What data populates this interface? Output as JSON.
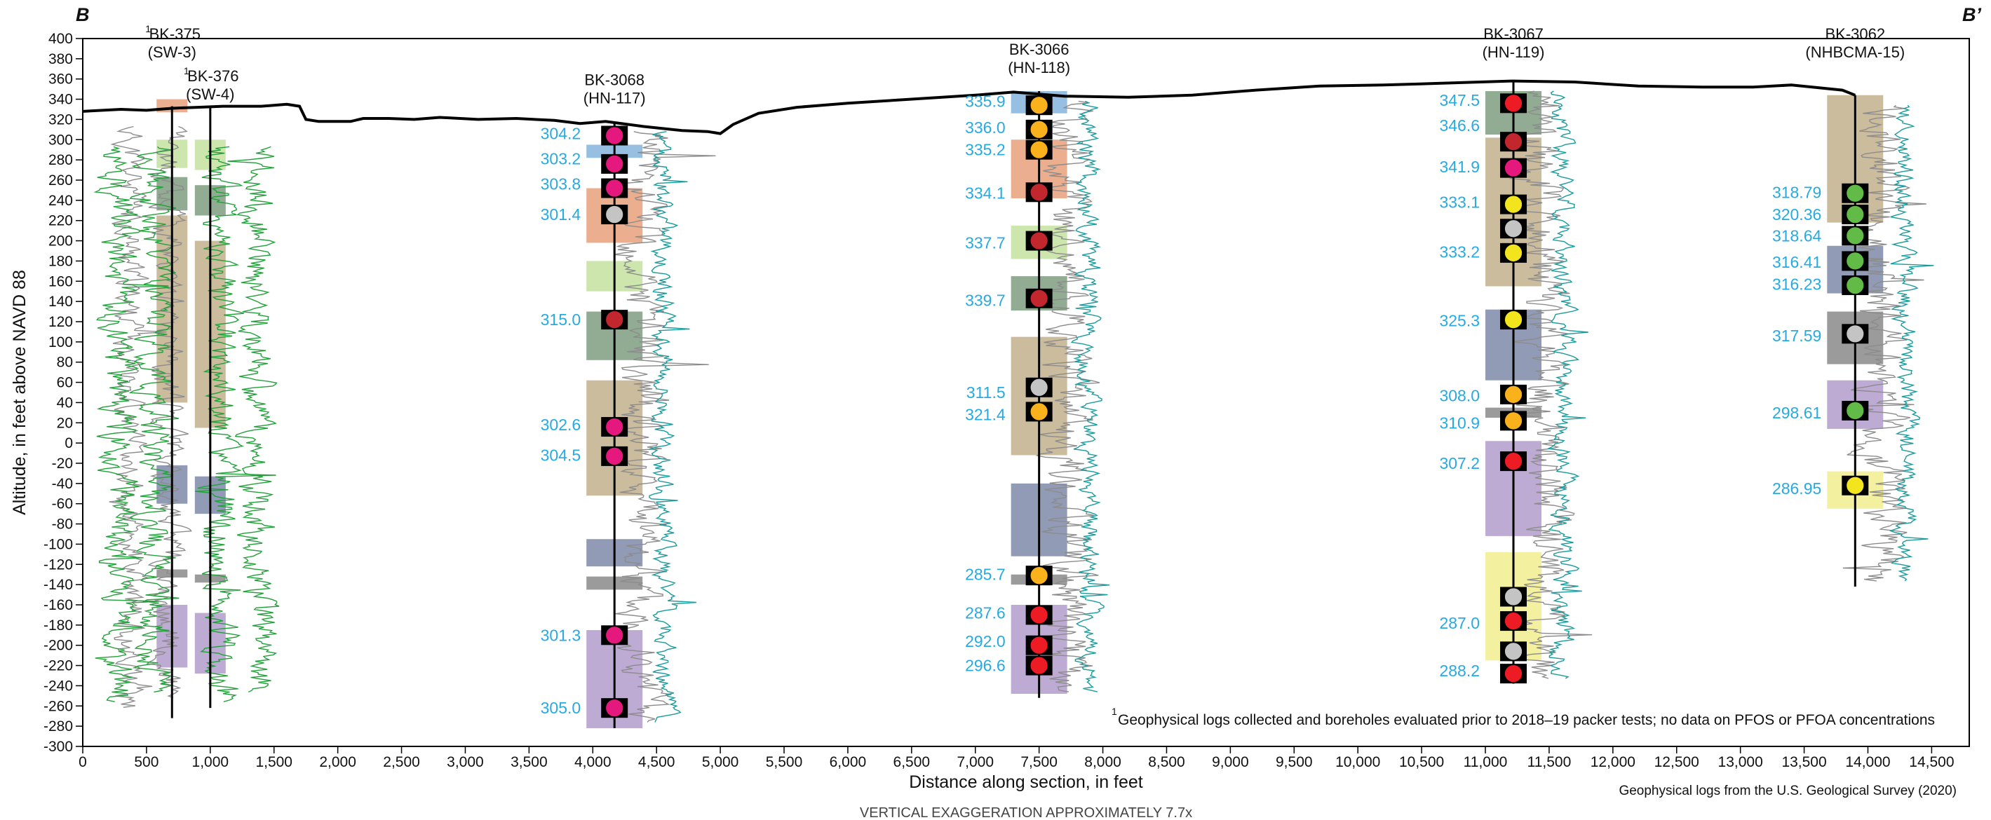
{
  "panel": {
    "left_letter": "B",
    "right_letter": "B’"
  },
  "axes": {
    "ylabel": "Altitude, in feet above NAVD 88",
    "xlabel": "Distance along section, in feet",
    "yticks": [
      "400",
      "380",
      "360",
      "340",
      "320",
      "300",
      "280",
      "260",
      "240",
      "220",
      "200",
      "180",
      "160",
      "140",
      "120",
      "100",
      "80",
      "60",
      "40",
      "20",
      "0",
      "-20",
      "-40",
      "-60",
      "-80",
      "-100",
      "-120",
      "-140",
      "-160",
      "-180",
      "-200",
      "-220",
      "-240",
      "-260",
      "-280",
      "-300"
    ],
    "xticks": [
      "0",
      "500",
      "1,000",
      "1,500",
      "2,000",
      "2,500",
      "3,000",
      "3,500",
      "4,000",
      "4,500",
      "5,000",
      "5,500",
      "6,000",
      "6,500",
      "7,000",
      "7,500",
      "8,000",
      "8,500",
      "9,000",
      "9,500",
      "10,000",
      "10,500",
      "11,000",
      "11,500",
      "12,000",
      "12,500",
      "13,000",
      "13,500",
      "14,000",
      "14,500"
    ]
  },
  "notes": {
    "footnote_sup": "1",
    "footnote": "Geophysical logs collected and boreholes evaluated prior to 2018–19 packer tests; no data on PFOS or PFOA concentrations",
    "source": "Geophysical logs from the U.S. Geological Survey (2020)",
    "exaggeration": "VERTICAL EXAGGERATION APPROXIMATELY 7.7x"
  },
  "colors": {
    "land_surface": "#000000",
    "well": "#000000",
    "value_label": "#27aae1",
    "gamma_log": "#8c8c8c",
    "green_log": "#22a03a",
    "teal_log": "#1a9a9a",
    "orange_zone": "#e8a07a",
    "lightgreen_zone": "#c4e2a0",
    "darkgreen_zone": "#7f9e80",
    "tan_zone": "#c2b08c",
    "blue_zone": "#7e8aa8",
    "lightblue_zone": "#85b4dc",
    "gray_zone": "#8a8a8a",
    "purple_zone": "#b39ccc",
    "yellow_zone": "#f1ef8e",
    "marker_magenta": "#e5187d",
    "marker_darkred": "#c1272d",
    "marker_red": "#ed1c24",
    "marker_orange": "#f9b21c",
    "marker_yellow": "#f2e51e",
    "marker_gray": "#c4c4c4",
    "marker_green": "#62bb46"
  },
  "land_surface": [
    [
      0,
      328
    ],
    [
      300,
      330
    ],
    [
      500,
      329
    ],
    [
      700,
      331
    ],
    [
      900,
      332
    ],
    [
      1100,
      333
    ],
    [
      1400,
      333
    ],
    [
      1600,
      335
    ],
    [
      1700,
      333
    ],
    [
      1750,
      320
    ],
    [
      1850,
      318
    ],
    [
      2100,
      318
    ],
    [
      2200,
      321
    ],
    [
      2400,
      321
    ],
    [
      2600,
      320
    ],
    [
      2800,
      322
    ],
    [
      3100,
      320
    ],
    [
      3400,
      321
    ],
    [
      3700,
      319
    ],
    [
      3900,
      316
    ],
    [
      4100,
      318
    ],
    [
      4400,
      313
    ],
    [
      4700,
      309
    ],
    [
      4900,
      308
    ],
    [
      5000,
      306
    ],
    [
      5100,
      315
    ],
    [
      5300,
      326
    ],
    [
      5600,
      332
    ],
    [
      6000,
      336
    ],
    [
      6500,
      340
    ],
    [
      7000,
      344
    ],
    [
      7300,
      347
    ],
    [
      7700,
      343
    ],
    [
      8200,
      342
    ],
    [
      8700,
      344
    ],
    [
      9200,
      349
    ],
    [
      9700,
      353
    ],
    [
      10200,
      354
    ],
    [
      10700,
      356
    ],
    [
      11200,
      358
    ],
    [
      11700,
      357
    ],
    [
      12200,
      353
    ],
    [
      12700,
      352
    ],
    [
      13100,
      352
    ],
    [
      13400,
      354
    ],
    [
      13800,
      349
    ],
    [
      13900,
      344
    ]
  ],
  "wells": [
    {
      "id": "BK-375",
      "sup": "1",
      "alt": "(SW-3)",
      "x": 700,
      "top": 333,
      "bottom": -272,
      "zones": [
        [
          340,
          327,
          "orange"
        ],
        [
          300,
          272,
          "lightgreen"
        ],
        [
          263,
          230,
          "darkgreen"
        ],
        [
          225,
          40,
          "tan"
        ],
        [
          -22,
          -60,
          "blue"
        ],
        [
          -125,
          -133,
          "gray"
        ],
        [
          -160,
          -222,
          "purple"
        ]
      ]
    },
    {
      "id": "BK-376",
      "sup": "1",
      "alt": "(SW-4)",
      "x": 1000,
      "top": 333,
      "bottom": -262,
      "zones": [
        [
          300,
          270,
          "lightgreen"
        ],
        [
          255,
          225,
          "darkgreen"
        ],
        [
          200,
          15,
          "tan"
        ],
        [
          -33,
          -70,
          "blue"
        ],
        [
          -130,
          -138,
          "gray"
        ],
        [
          -168,
          -228,
          "purple"
        ]
      ]
    },
    {
      "id": "BK-3068",
      "alt": "(HN-117)",
      "x": 4170,
      "top": 318,
      "bottom": -282,
      "zones": [
        [
          295,
          282,
          "lightblue"
        ],
        [
          252,
          198,
          "orange"
        ],
        [
          180,
          150,
          "lightgreen"
        ],
        [
          130,
          82,
          "darkgreen"
        ],
        [
          62,
          -52,
          "tan"
        ],
        [
          -95,
          -122,
          "blue"
        ],
        [
          -132,
          -145,
          "gray"
        ],
        [
          -185,
          -282,
          "purple"
        ]
      ],
      "markers": [
        [
          304,
          "magenta"
        ],
        [
          276,
          "magenta"
        ],
        [
          252,
          "magenta"
        ],
        [
          226,
          "gray"
        ],
        [
          122,
          "darkred"
        ],
        [
          16,
          "magenta"
        ],
        [
          -13,
          "magenta"
        ],
        [
          -190,
          "magenta"
        ],
        [
          -262,
          "magenta"
        ]
      ],
      "labels": [
        [
          306,
          "304.2"
        ],
        [
          281,
          "303.2"
        ],
        [
          256,
          "303.8"
        ],
        [
          226,
          "301.4"
        ],
        [
          122,
          "315.0"
        ],
        [
          18,
          "302.6"
        ],
        [
          -12,
          "304.5"
        ],
        [
          -190,
          "301.3"
        ],
        [
          -262,
          "305.0"
        ]
      ]
    },
    {
      "id": "BK-3066",
      "alt": "(HN-118)",
      "x": 7500,
      "top": 348,
      "bottom": -252,
      "zones": [
        [
          348,
          326,
          "lightblue"
        ],
        [
          300,
          242,
          "orange"
        ],
        [
          215,
          182,
          "lightgreen"
        ],
        [
          165,
          131,
          "darkgreen"
        ],
        [
          105,
          -12,
          "tan"
        ],
        [
          -40,
          -112,
          "blue"
        ],
        [
          -130,
          -140,
          "gray"
        ],
        [
          -160,
          -248,
          "purple"
        ]
      ],
      "markers": [
        [
          334,
          "orange"
        ],
        [
          310,
          "orange"
        ],
        [
          290,
          "orange"
        ],
        [
          248,
          "darkred"
        ],
        [
          200,
          "darkred"
        ],
        [
          143,
          "darkred"
        ],
        [
          55,
          "gray"
        ],
        [
          31,
          "orange"
        ],
        [
          -131,
          "orange"
        ],
        [
          -170,
          "red"
        ],
        [
          -200,
          "red"
        ],
        [
          -220,
          "red"
        ]
      ],
      "labels": [
        [
          338,
          "335.9"
        ],
        [
          312,
          "336.0"
        ],
        [
          290,
          "335.2"
        ],
        [
          247,
          "334.1"
        ],
        [
          198,
          "337.7"
        ],
        [
          141,
          "339.7"
        ],
        [
          50,
          "311.5"
        ],
        [
          28,
          "321.4"
        ],
        [
          -130,
          "285.7"
        ],
        [
          -168,
          "287.6"
        ],
        [
          -196,
          "292.0"
        ],
        [
          -220,
          "296.6"
        ]
      ]
    },
    {
      "id": "BK-3067",
      "alt": "(HN-119)",
      "x": 11220,
      "top": 358,
      "bottom": -238,
      "zones": [
        [
          348,
          305,
          "darkgreen"
        ],
        [
          302,
          155,
          "tan"
        ],
        [
          132,
          62,
          "blue"
        ],
        [
          35,
          25,
          "gray"
        ],
        [
          2,
          -92,
          "purple"
        ],
        [
          -108,
          -215,
          "yellow"
        ]
      ],
      "markers": [
        [
          336,
          "red"
        ],
        [
          298,
          "darkred"
        ],
        [
          272,
          "magenta"
        ],
        [
          236,
          "yellow"
        ],
        [
          212,
          "gray"
        ],
        [
          188,
          "yellow"
        ],
        [
          122,
          "yellow"
        ],
        [
          48,
          "orange"
        ],
        [
          22,
          "orange"
        ],
        [
          -18,
          "red"
        ],
        [
          -152,
          "gray"
        ],
        [
          -176,
          "red"
        ],
        [
          -206,
          "gray"
        ],
        [
          -228,
          "red"
        ]
      ],
      "labels": [
        [
          339,
          "347.5"
        ],
        [
          314,
          "346.6"
        ],
        [
          273,
          "341.9"
        ],
        [
          238,
          "333.1"
        ],
        [
          189,
          "333.2"
        ],
        [
          121,
          "325.3"
        ],
        [
          47,
          "308.0"
        ],
        [
          20,
          "310.9"
        ],
        [
          -20,
          "307.2"
        ],
        [
          -178,
          "287.0"
        ],
        [
          -225,
          "288.2"
        ]
      ]
    },
    {
      "id": "BK-3062",
      "alt": "(NHBCMA-15)",
      "x": 13900,
      "top": 344,
      "bottom": -142,
      "zones": [
        [
          344,
          218,
          "tan"
        ],
        [
          195,
          148,
          "blue"
        ],
        [
          130,
          78,
          "gray"
        ],
        [
          62,
          14,
          "purple"
        ],
        [
          -28,
          -65,
          "yellow"
        ]
      ],
      "markers": [
        [
          247,
          "green"
        ],
        [
          226,
          "green"
        ],
        [
          205,
          "green"
        ],
        [
          180,
          "green"
        ],
        [
          156,
          "green"
        ],
        [
          108,
          "gray"
        ],
        [
          32,
          "green"
        ],
        [
          -42,
          "yellow"
        ]
      ],
      "labels": [
        [
          248,
          "318.79"
        ],
        [
          226,
          "320.36"
        ],
        [
          205,
          "318.64"
        ],
        [
          179,
          "316.41"
        ],
        [
          157,
          "316.23"
        ],
        [
          106,
          "317.59"
        ],
        [
          30,
          "298.61"
        ],
        [
          -45,
          "286.95"
        ]
      ]
    }
  ]
}
